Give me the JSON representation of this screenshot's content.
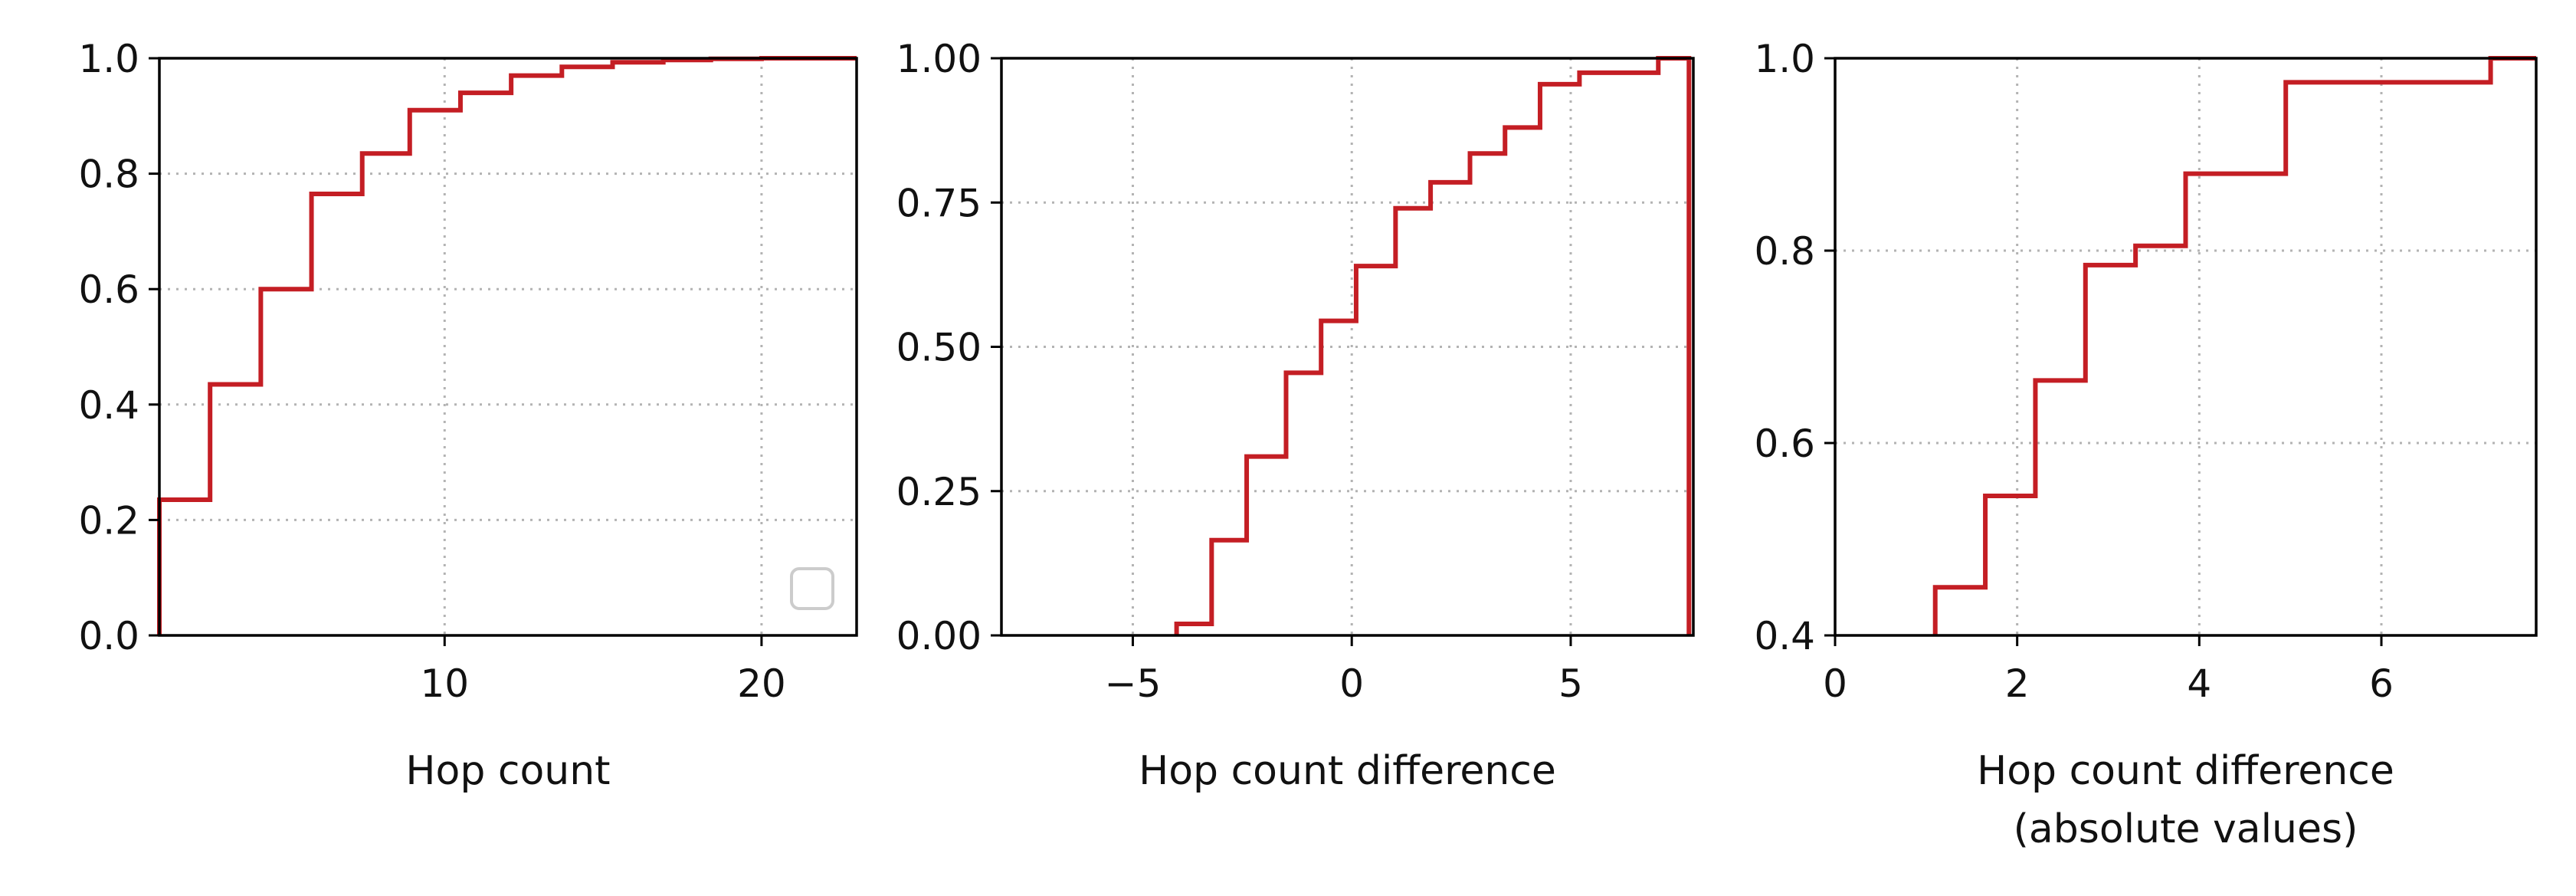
{
  "colors": {
    "line": "#c41e24",
    "grid": "#b3b3b3",
    "axes": "#000000",
    "legend_edge": "#cccccc"
  },
  "chart_data": [
    {
      "type": "line",
      "step": true,
      "xlabel": "Hop count",
      "xlim": [
        1,
        23
      ],
      "ylim": [
        0,
        1
      ],
      "xticks": [
        {
          "value": 10,
          "label": "10"
        },
        {
          "value": 20,
          "label": "20"
        }
      ],
      "yticks": [
        {
          "value": 0,
          "label": "0.0"
        },
        {
          "value": 0.2,
          "label": "0.2"
        },
        {
          "value": 0.4,
          "label": "0.4"
        },
        {
          "value": 0.6,
          "label": "0.6"
        },
        {
          "value": 0.8,
          "label": "0.8"
        },
        {
          "value": 1.0,
          "label": "1.0"
        }
      ],
      "grid": true,
      "legend": "lower-right (empty)",
      "series": [
        {
          "x": [
            1.0,
            2.6,
            4.2,
            5.8,
            7.4,
            8.9,
            10.5,
            12.1,
            13.7,
            15.3,
            16.9,
            18.4,
            20.0,
            21.6,
            23.0
          ],
          "y": [
            0.235,
            0.435,
            0.6,
            0.765,
            0.835,
            0.91,
            0.94,
            0.97,
            0.985,
            0.993,
            0.997,
            0.999,
            1.0,
            1.0,
            1.0
          ]
        }
      ]
    },
    {
      "type": "line",
      "step": true,
      "xlabel": "Hop count difference",
      "xlim": [
        -8,
        7.8
      ],
      "ylim": [
        0,
        1
      ],
      "xticks": [
        {
          "value": -5,
          "label": "−5"
        },
        {
          "value": 0,
          "label": "0"
        },
        {
          "value": 5,
          "label": "5"
        }
      ],
      "yticks": [
        {
          "value": 0,
          "label": "0.00"
        },
        {
          "value": 0.25,
          "label": "0.25"
        },
        {
          "value": 0.5,
          "label": "0.50"
        },
        {
          "value": 0.75,
          "label": "0.75"
        },
        {
          "value": 1.0,
          "label": "1.00"
        }
      ],
      "grid": true,
      "series": [
        {
          "x": [
            -4.0,
            -3.2,
            -2.4,
            -1.5,
            -0.7,
            0.1,
            1.0,
            1.8,
            2.7,
            3.5,
            4.3,
            5.2,
            7.0,
            7.7
          ],
          "y": [
            0.02,
            0.165,
            0.31,
            0.455,
            0.545,
            0.64,
            0.74,
            0.785,
            0.835,
            0.88,
            0.955,
            0.975,
            1.0,
            0.0
          ]
        }
      ]
    },
    {
      "type": "line",
      "step": true,
      "xlabel": "Hop count difference\n(absolute values)",
      "xlim": [
        0,
        7.7
      ],
      "ylim": [
        0.4,
        1
      ],
      "xticks": [
        {
          "value": 0,
          "label": "0"
        },
        {
          "value": 2,
          "label": "2"
        },
        {
          "value": 4,
          "label": "4"
        },
        {
          "value": 6,
          "label": "6"
        }
      ],
      "yticks": [
        {
          "value": 0.4,
          "label": "0.4"
        },
        {
          "value": 0.6,
          "label": "0.6"
        },
        {
          "value": 0.8,
          "label": "0.8"
        },
        {
          "value": 1.0,
          "label": "1.0"
        }
      ],
      "grid": true,
      "series": [
        {
          "x": [
            1.1,
            1.65,
            2.2,
            2.75,
            3.3,
            3.85,
            4.95,
            7.2,
            7.7
          ],
          "y": [
            0.45,
            0.545,
            0.665,
            0.785,
            0.805,
            0.88,
            0.975,
            1.0,
            1.0
          ]
        }
      ]
    }
  ]
}
